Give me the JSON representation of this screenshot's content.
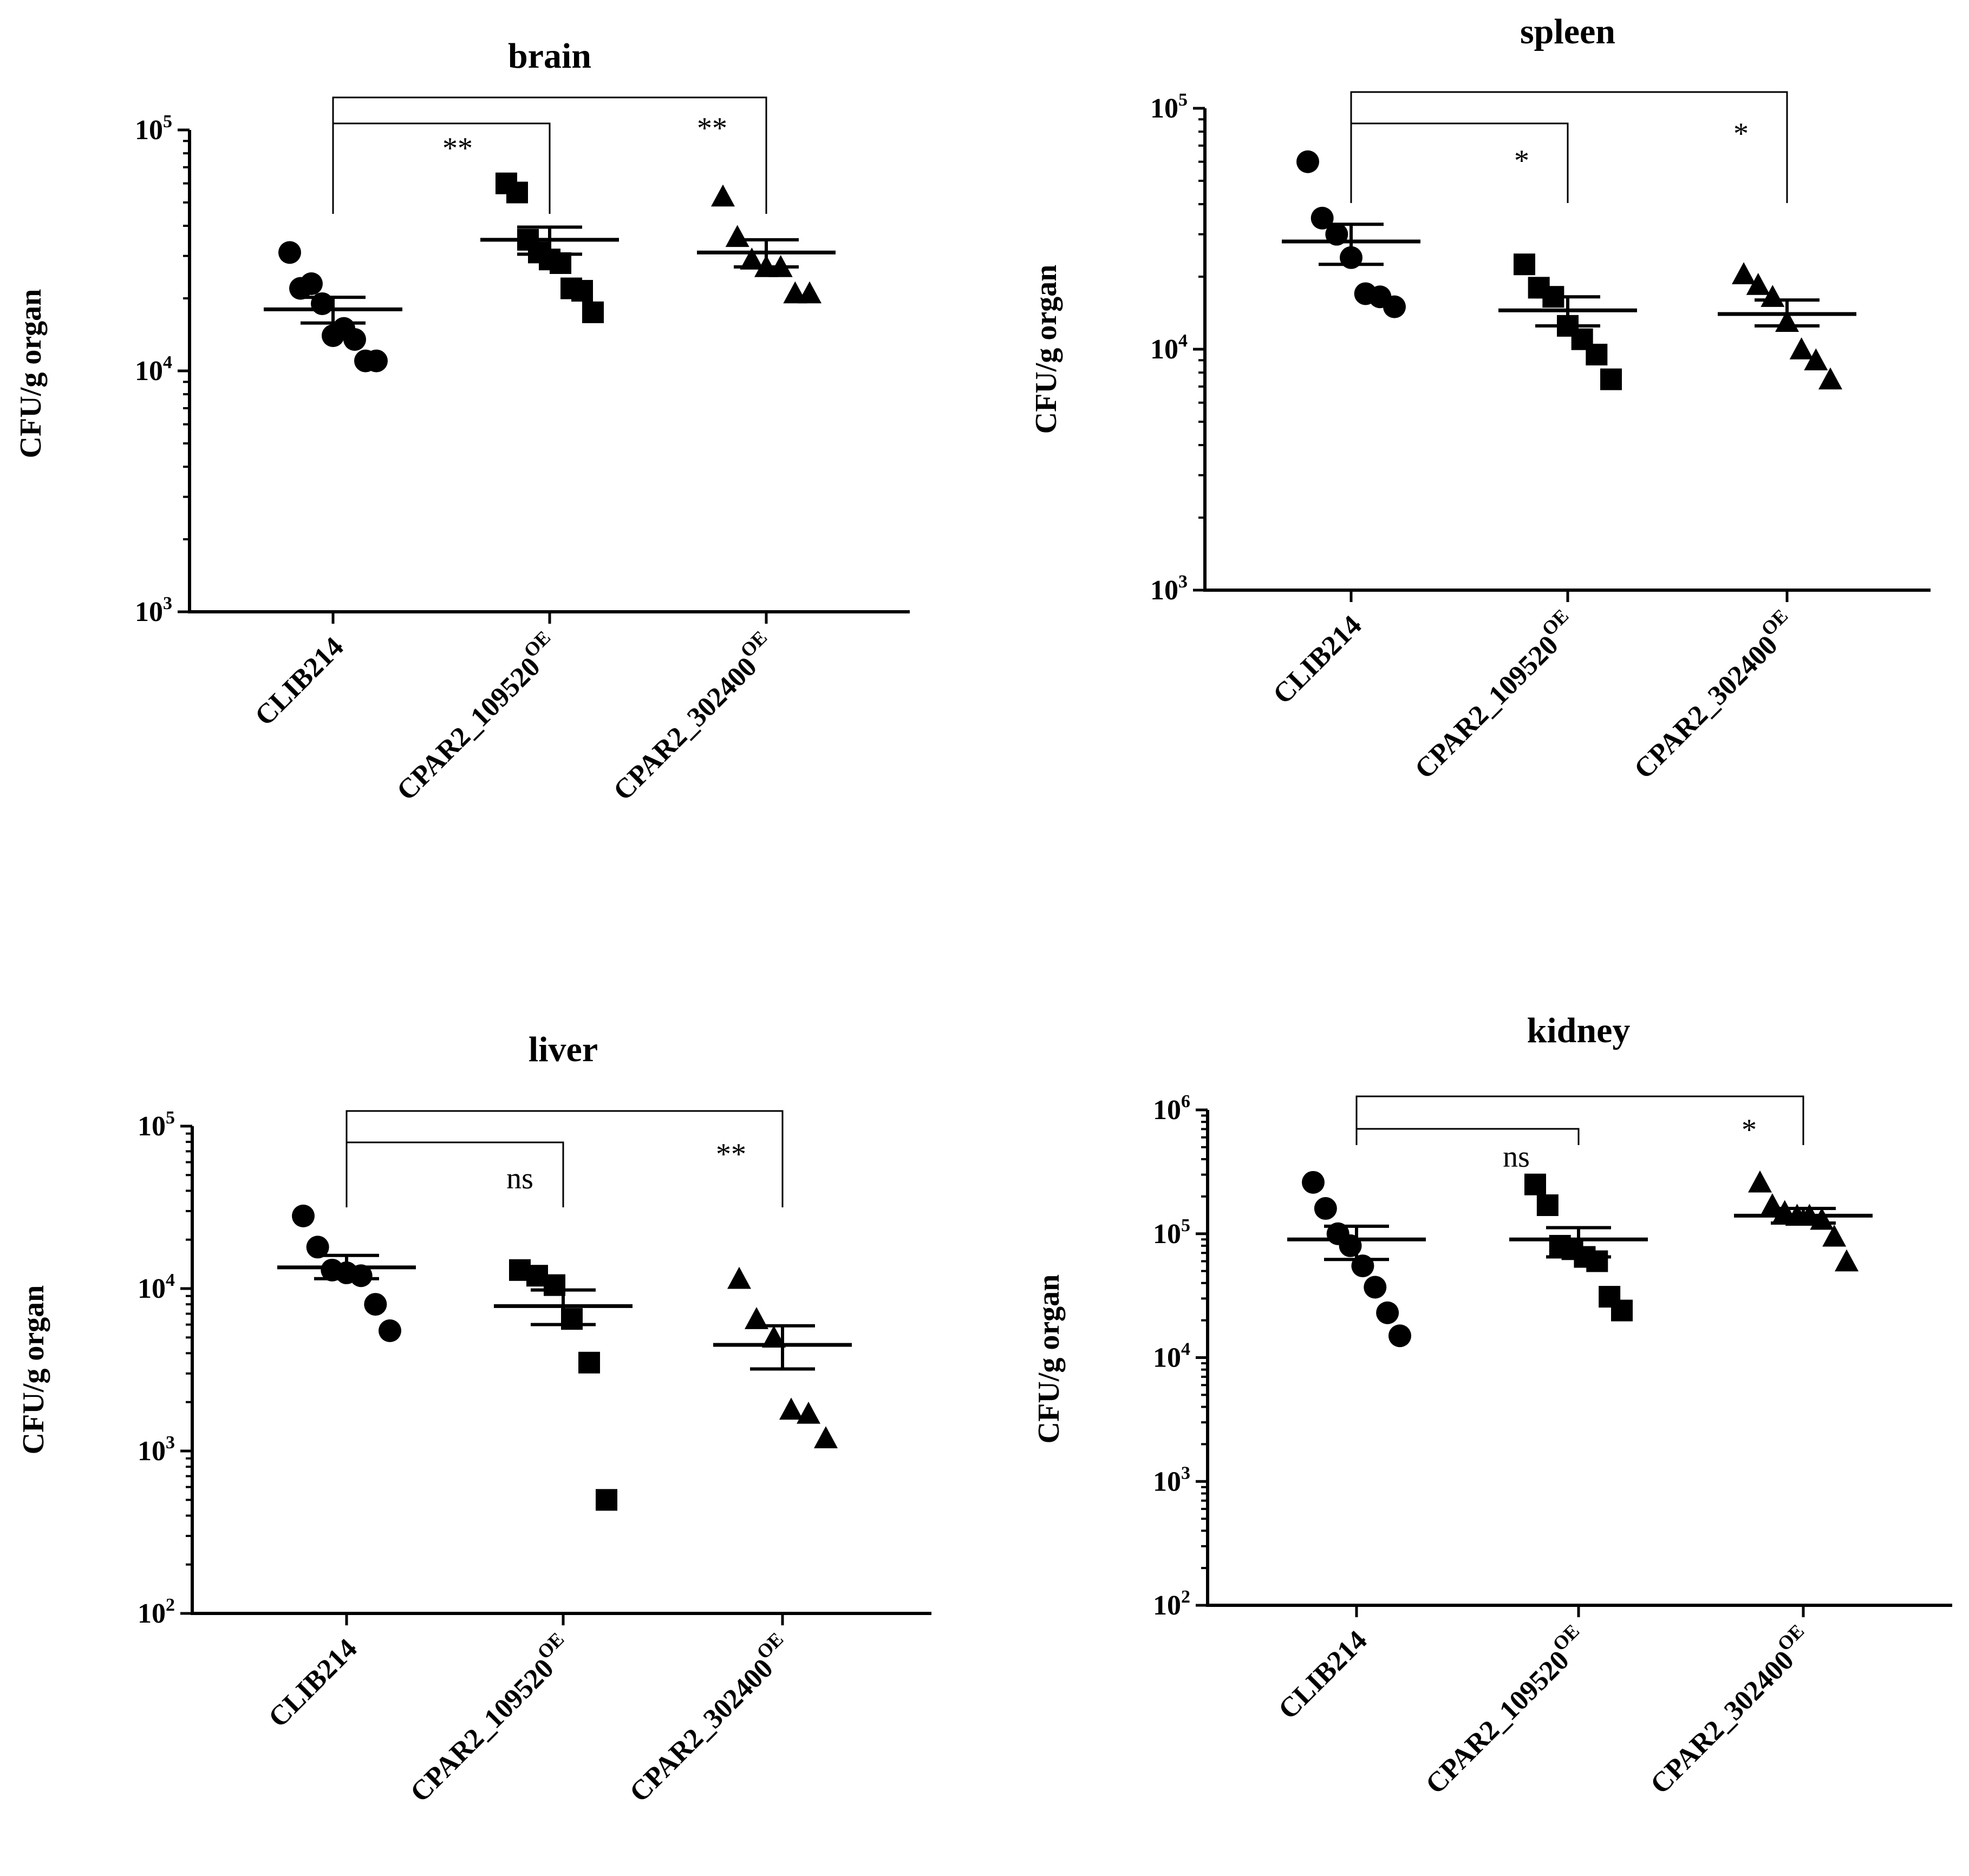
{
  "chart_data": [
    {
      "type": "scatter",
      "title": "brain",
      "ylabel": "CFU/g organ",
      "yscale": "log",
      "ylim": [
        1000,
        100000
      ],
      "yticks": [
        {
          "base": "10",
          "exp": "3"
        },
        {
          "base": "10",
          "exp": "4"
        },
        {
          "base": "10",
          "exp": "5"
        }
      ],
      "categories": [
        {
          "name": "CLIB214",
          "sup": ""
        },
        {
          "name": "CPAR2_109520",
          "sup": "OE"
        },
        {
          "name": "CPAR2_302400",
          "sup": "OE"
        }
      ],
      "series": [
        {
          "name": "CLIB214",
          "marker": "circle",
          "values": [
            31000,
            22000,
            23000,
            19000,
            14000,
            15000,
            13500,
            11000,
            11000
          ],
          "mean": 18000,
          "sem": [
            15800,
            20200
          ]
        },
        {
          "name": "CPAR2_109520",
          "marker": "square",
          "values": [
            60000,
            55000,
            35000,
            31000,
            29000,
            28000,
            22000,
            21500,
            17500
          ],
          "mean": 35000,
          "sem": [
            30500,
            39500
          ]
        },
        {
          "name": "CPAR2_302400",
          "marker": "triangle",
          "values": [
            53000,
            36000,
            29000,
            27000,
            27000,
            21000,
            21000
          ],
          "mean": 31000,
          "sem": [
            27000,
            35000
          ]
        }
      ],
      "significance": [
        {
          "from": "CLIB214",
          "to": "CPAR2_109520",
          "label": "**"
        },
        {
          "from": "CLIB214",
          "to": "CPAR2_302400",
          "label": "**"
        }
      ]
    },
    {
      "type": "scatter",
      "title": "spleen",
      "ylabel": "CFU/g organ",
      "yscale": "log",
      "ylim": [
        1000,
        100000
      ],
      "yticks": [
        {
          "base": "10",
          "exp": "3"
        },
        {
          "base": "10",
          "exp": "4"
        },
        {
          "base": "10",
          "exp": "5"
        }
      ],
      "categories": [
        {
          "name": "CLIB214",
          "sup": ""
        },
        {
          "name": "CPAR2_109520",
          "sup": "OE"
        },
        {
          "name": "CPAR2_302400",
          "sup": "OE"
        }
      ],
      "series": [
        {
          "name": "CLIB214",
          "marker": "circle",
          "values": [
            60000,
            35000,
            30000,
            24000,
            17000,
            16500,
            15000
          ],
          "mean": 28000,
          "sem": [
            22500,
            33000
          ]
        },
        {
          "name": "CPAR2_109520",
          "marker": "square",
          "values": [
            22500,
            18000,
            16500,
            12500,
            11000,
            9500,
            7500
          ],
          "mean": 14500,
          "sem": [
            12500,
            16500
          ]
        },
        {
          "name": "CPAR2_302400",
          "marker": "triangle",
          "values": [
            20500,
            18500,
            16500,
            13000,
            10000,
            9000,
            7500
          ],
          "mean": 14000,
          "sem": [
            12500,
            16000
          ]
        }
      ],
      "significance": [
        {
          "from": "CLIB214",
          "to": "CPAR2_109520",
          "label": "*"
        },
        {
          "from": "CLIB214",
          "to": "CPAR2_302400",
          "label": "*"
        }
      ]
    },
    {
      "type": "scatter",
      "title": "liver",
      "ylabel": "CFU/g organ",
      "yscale": "log",
      "ylim": [
        100,
        100000
      ],
      "yticks": [
        {
          "base": "10",
          "exp": "2"
        },
        {
          "base": "10",
          "exp": "3"
        },
        {
          "base": "10",
          "exp": "4"
        },
        {
          "base": "10",
          "exp": "5"
        }
      ],
      "categories": [
        {
          "name": "CLIB214",
          "sup": ""
        },
        {
          "name": "CPAR2_109520",
          "sup": "OE"
        },
        {
          "name": "CPAR2_302400",
          "sup": "OE"
        }
      ],
      "series": [
        {
          "name": "CLIB214",
          "marker": "circle",
          "values": [
            28000,
            18000,
            13000,
            12500,
            12000,
            8000,
            5500
          ],
          "mean": 13500,
          "sem": [
            11500,
            16000
          ]
        },
        {
          "name": "CPAR2_109520",
          "marker": "square",
          "values": [
            13000,
            12000,
            10500,
            6500,
            3500,
            500
          ],
          "mean": 7800,
          "sem": [
            6000,
            9800
          ]
        },
        {
          "name": "CPAR2_302400",
          "marker": "triangle",
          "values": [
            11500,
            6500,
            5000,
            1800,
            1700,
            1200
          ],
          "mean": 4500,
          "sem": [
            3200,
            5900
          ]
        }
      ],
      "significance": [
        {
          "from": "CLIB214",
          "to": "CPAR2_109520",
          "label": "ns"
        },
        {
          "from": "CLIB214",
          "to": "CPAR2_302400",
          "label": "**"
        }
      ]
    },
    {
      "type": "scatter",
      "title": "kidney",
      "ylabel": "CFU/g organ",
      "yscale": "log",
      "ylim": [
        100,
        1000000
      ],
      "yticks": [
        {
          "base": "10",
          "exp": "2"
        },
        {
          "base": "10",
          "exp": "3"
        },
        {
          "base": "10",
          "exp": "4"
        },
        {
          "base": "10",
          "exp": "5"
        },
        {
          "base": "10",
          "exp": "6"
        }
      ],
      "categories": [
        {
          "name": "CLIB214",
          "sup": ""
        },
        {
          "name": "CPAR2_109520",
          "sup": "OE"
        },
        {
          "name": "CPAR2_302400",
          "sup": "OE"
        }
      ],
      "series": [
        {
          "name": "CLIB214",
          "marker": "circle",
          "values": [
            260000,
            160000,
            100000,
            80000,
            55000,
            37000,
            23000,
            15000
          ],
          "mean": 90000,
          "sem": [
            62000,
            115000
          ]
        },
        {
          "name": "CPAR2_109520",
          "marker": "square",
          "values": [
            250000,
            170000,
            80000,
            75000,
            65000,
            60000,
            31000,
            24000
          ],
          "mean": 90000,
          "sem": [
            65000,
            112000
          ]
        },
        {
          "name": "CPAR2_302400",
          "marker": "triangle",
          "values": [
            260000,
            170000,
            150000,
            140000,
            140000,
            130000,
            95000,
            60000
          ],
          "mean": 140000,
          "sem": [
            122000,
            160000
          ]
        }
      ],
      "significance": [
        {
          "from": "CLIB214",
          "to": "CPAR2_109520",
          "label": "ns"
        },
        {
          "from": "CLIB214",
          "to": "CPAR2_302400",
          "label": "*"
        }
      ]
    }
  ]
}
